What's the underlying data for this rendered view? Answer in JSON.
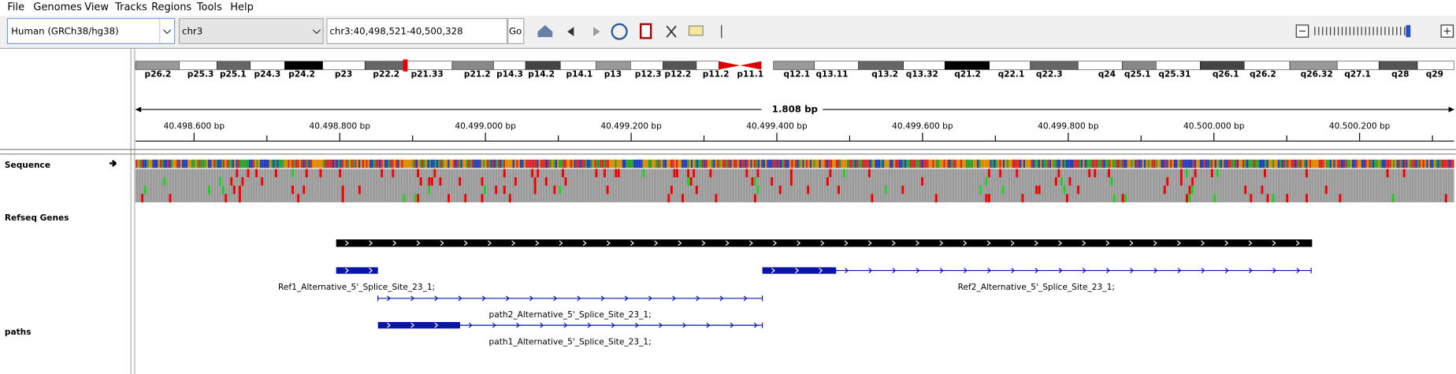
{
  "menu": [
    "File",
    "Genomes",
    "View",
    "Tracks",
    "Regions",
    "Tools",
    "Help"
  ],
  "toolbar": {
    "genome": "Human (GRCh38/hg38)",
    "chromosome": "chr3",
    "locus": "chr3:40,498,521-40,500,328",
    "go": "Go"
  },
  "cytobands": [
    "p26.2",
    "p25.3",
    "p25.1",
    "p24.3",
    "p24.2",
    "p23",
    "p22.2",
    "p21.33",
    "p21.2",
    "p14.3",
    "p14.2",
    "p14.1",
    "p13",
    "p12.3",
    "p12.2",
    "p11.2",
    "p11.1",
    "q12.1",
    "q13.11",
    "q13.2",
    "q13.32",
    "q21.2",
    "q22.1",
    "q22.3",
    "q24",
    "q25.1",
    "q25.31",
    "q26.1",
    "q26.2",
    "q26.32",
    "q27.1",
    "q28",
    "q29"
  ],
  "ruler": {
    "span": "1.808 bp",
    "ticks": [
      "40.498.600 bp",
      "40.498.800 bp",
      "40.499.000 bp",
      "40.499.200 bp",
      "40.499.400 bp",
      "40.499.600 bp",
      "40.499.800 bp",
      "40.500.000 bp",
      "40.500.200 bp"
    ]
  },
  "tracks": [
    {
      "name": "Sequence"
    },
    {
      "name": "Refseq Genes"
    },
    {
      "name": "paths"
    }
  ],
  "features": [
    {
      "label": "Ref1_Alternative_5'_Splice_Site_23_1;"
    },
    {
      "label": "Ref2_Alternative_5'_Splice_Site_23_1;"
    },
    {
      "label": "path2_Alternative_5'_Splice_Site_23_1;"
    },
    {
      "label": "path1_Alternative_5'_Splice_Site_23_1;"
    }
  ]
}
